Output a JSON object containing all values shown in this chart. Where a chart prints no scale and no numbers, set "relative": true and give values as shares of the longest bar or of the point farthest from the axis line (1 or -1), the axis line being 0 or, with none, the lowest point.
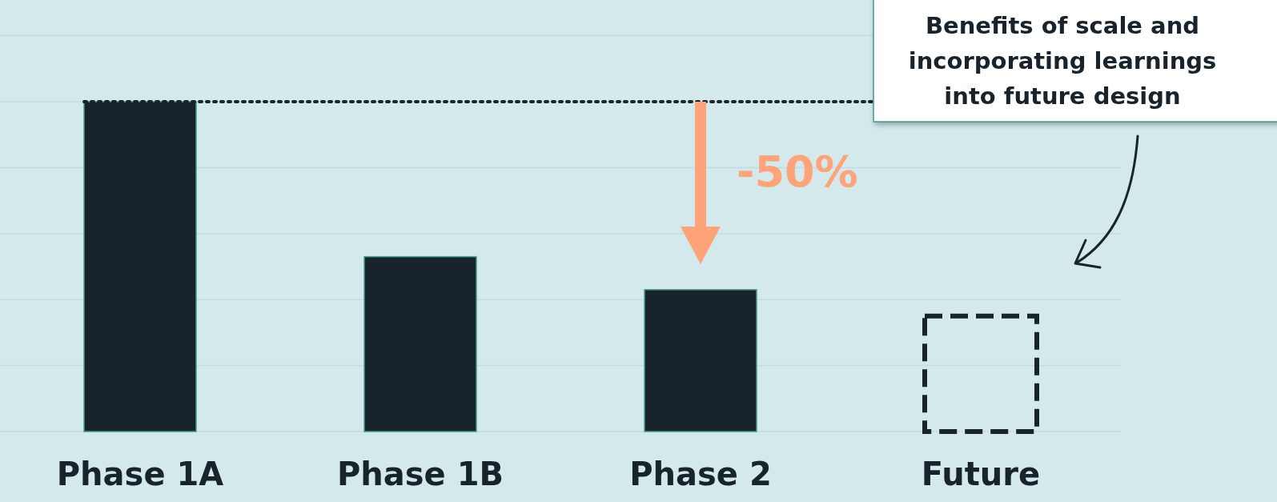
{
  "chart_data": {
    "type": "bar",
    "relative": true,
    "categories": [
      "Phase 1A",
      "Phase 1B",
      "Phase 2",
      "Future"
    ],
    "series": [
      {
        "color": "#18232b",
        "values": [
          1,
          0.53,
          0.43,
          null
        ]
      },
      {
        "color": "#18232b",
        "line_style": "dashed",
        "values": [
          null,
          null,
          null,
          0.35
        ]
      }
    ],
    "grid": "y",
    "ref_lines": [
      {
        "axis": "y",
        "value": 1,
        "line_style": "dotted",
        "color": "#18232b"
      }
    ],
    "annotations": [
      "-50%",
      "Benefits of scale and incorporating learnings into future design"
    ]
  }
}
